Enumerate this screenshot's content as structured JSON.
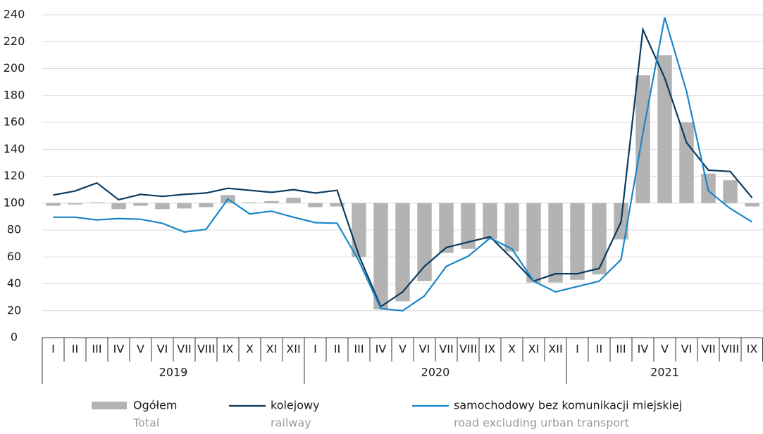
{
  "chart_data": {
    "type": "bar_line",
    "categories": [
      "I",
      "II",
      "III",
      "IV",
      "V",
      "VI",
      "VII",
      "VIII",
      "IX",
      "X",
      "XI",
      "XII",
      "I",
      "II",
      "III",
      "IV",
      "V",
      "VI",
      "VII",
      "VIII",
      "IX",
      "X",
      "XI",
      "XII",
      "I",
      "II",
      "III",
      "IV",
      "V",
      "VI",
      "VII",
      "VIII",
      "IX"
    ],
    "groups": [
      "2019",
      "2020",
      "2021"
    ],
    "ylim": [
      0,
      240
    ],
    "yticks": [
      0,
      20,
      40,
      60,
      80,
      100,
      120,
      140,
      160,
      180,
      200,
      220,
      240
    ],
    "grid": true,
    "bar_baseline": 100,
    "series": [
      {
        "name": "Ogółem",
        "subname": "Total",
        "kind": "bar",
        "color": "#b3b3b3",
        "values": [
          98,
          99,
          100.5,
          95.5,
          98,
          95.5,
          96,
          97,
          106,
          100.5,
          101.5,
          104,
          97,
          97.5,
          60,
          21,
          27,
          42,
          63,
          66,
          73,
          64,
          41,
          41,
          43,
          47,
          73,
          195,
          210,
          160,
          122,
          117,
          97.5
        ]
      },
      {
        "name": "kolejowy",
        "subname": "railway",
        "kind": "line",
        "color": "#0b3a5e",
        "values": [
          106,
          109,
          115,
          102.5,
          106.5,
          105,
          106.5,
          107.5,
          111,
          109.5,
          108,
          110,
          107.5,
          109.5,
          61,
          23,
          34,
          53,
          67,
          71,
          75,
          59,
          42,
          47.5,
          47.5,
          51.5,
          86,
          229,
          193,
          145,
          124.5,
          123.5,
          104
        ]
      },
      {
        "name": "samochodowy bez komunikacji miejskiej",
        "subname": "road excluding urban transport",
        "kind": "line",
        "color": "#1a86c8",
        "values": [
          89.5,
          89.5,
          87.5,
          88.5,
          88,
          85,
          78.5,
          80.5,
          103,
          92,
          94,
          89.5,
          85.5,
          85,
          57,
          21.5,
          20,
          31,
          53,
          60.5,
          74,
          66,
          42,
          34,
          38,
          42,
          58,
          152,
          238,
          183,
          109,
          96,
          86
        ]
      }
    ]
  }
}
